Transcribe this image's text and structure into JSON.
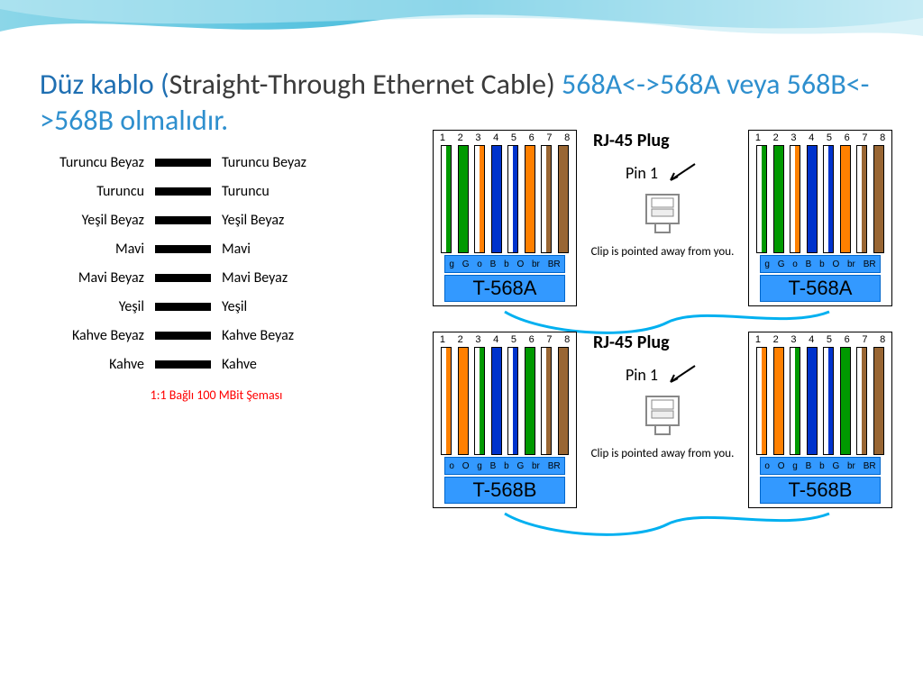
{
  "theme": {
    "wave_stops": [
      "#7fd2e6",
      "#2bb1d6",
      "#c9ecf5"
    ],
    "title_blue": "#1f6fb2",
    "title_light": "#2e8fce",
    "title_dark": "#3b3b3b"
  },
  "title": {
    "seg1": "Düz kablo (",
    "seg2": "Straight-Through Ethernet Cable) ",
    "seg3": "568A<->568A veya 568B<->568B olmalıdır."
  },
  "schema": {
    "rows": [
      {
        "l": "Turuncu Beyaz",
        "r": "Turuncu Beyaz"
      },
      {
        "l": "Turuncu",
        "r": "Turuncu"
      },
      {
        "l": "Yeşil Beyaz",
        "r": "Yeşil Beyaz"
      },
      {
        "l": "Mavi",
        "r": "Mavi"
      },
      {
        "l": "Mavi Beyaz",
        "r": "Mavi Beyaz"
      },
      {
        "l": "Yeşil",
        "r": "Yeşil"
      },
      {
        "l": "Kahve Beyaz",
        "r": "Kahve Beyaz"
      },
      {
        "l": "Kahve",
        "r": "Kahve"
      }
    ],
    "footer": "1:1 Bağlı  100 MBit Şeması"
  },
  "colors": {
    "green": "#009900",
    "orange": "#ff8000",
    "blue": "#0033cc",
    "brown": "#996633",
    "white": "#ffffff",
    "jack_blue": "#3399ff",
    "cable": "#00b0f0"
  },
  "pins": [
    "1",
    "2",
    "3",
    "4",
    "5",
    "6",
    "7",
    "8"
  ],
  "t568a": {
    "wires": [
      {
        "c": "#009900",
        "stripe": true
      },
      {
        "c": "#009900",
        "stripe": false
      },
      {
        "c": "#ff8000",
        "stripe": true
      },
      {
        "c": "#0033cc",
        "stripe": false
      },
      {
        "c": "#0033cc",
        "stripe": true
      },
      {
        "c": "#ff8000",
        "stripe": false
      },
      {
        "c": "#996633",
        "stripe": true
      },
      {
        "c": "#996633",
        "stripe": false
      }
    ],
    "codes": [
      "g",
      "G",
      "o",
      "B",
      "b",
      "O",
      "br",
      "BR"
    ],
    "label": "T-568A"
  },
  "t568b": {
    "wires": [
      {
        "c": "#ff8000",
        "stripe": true
      },
      {
        "c": "#ff8000",
        "stripe": false
      },
      {
        "c": "#009900",
        "stripe": true
      },
      {
        "c": "#0033cc",
        "stripe": false
      },
      {
        "c": "#0033cc",
        "stripe": true
      },
      {
        "c": "#009900",
        "stripe": false
      },
      {
        "c": "#996633",
        "stripe": true
      },
      {
        "c": "#996633",
        "stripe": false
      }
    ],
    "codes": [
      "o",
      "O",
      "g",
      "B",
      "b",
      "G",
      "br",
      "BR"
    ],
    "label": "T-568B"
  },
  "rj": {
    "title": "RJ-45 Plug",
    "pin1": "Pin 1",
    "clip": "Clip is pointed away from you."
  }
}
